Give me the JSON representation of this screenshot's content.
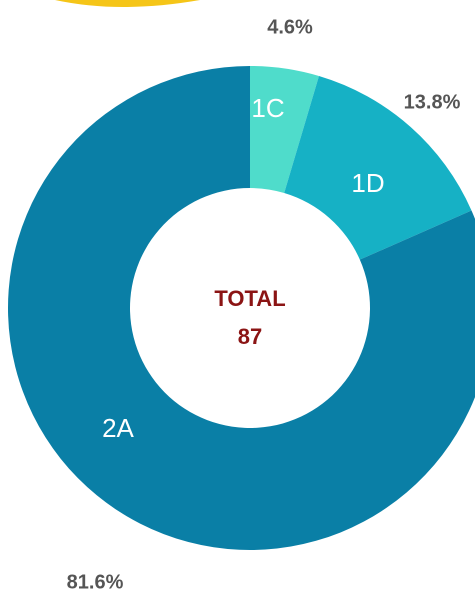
{
  "chart_data": {
    "type": "donut",
    "categories": [
      "1C",
      "1D",
      "2A"
    ],
    "values": [
      4.6,
      13.8,
      81.6
    ],
    "value_labels": [
      "4.6%",
      "13.8%",
      "81.6%"
    ],
    "colors": [
      "#4fdccb",
      "#16b1c5",
      "#0a7fa6"
    ],
    "center_label": "TOTAL",
    "total": 87
  }
}
